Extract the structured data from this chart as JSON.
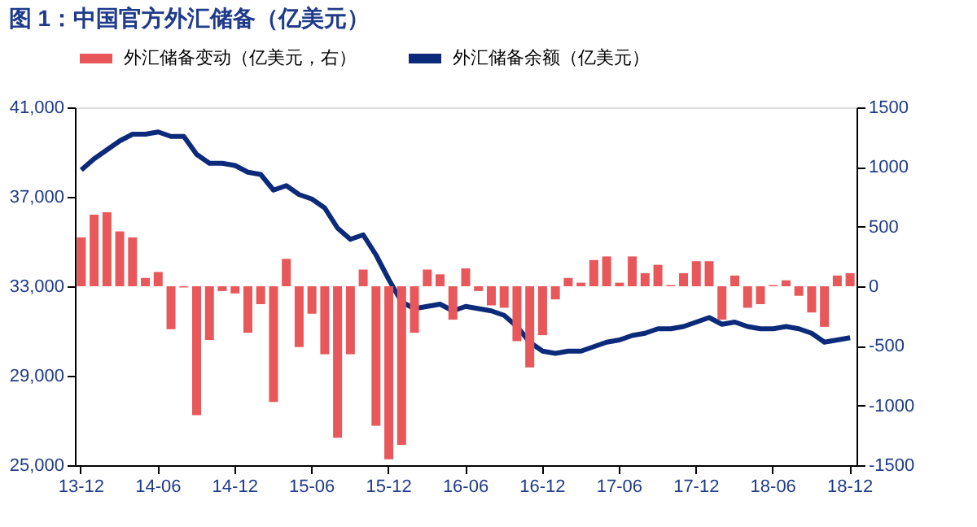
{
  "chart_data": {
    "type": "bar",
    "title": "图 1：中国官方外汇储备（亿美元）",
    "categories": [
      "13-12",
      null,
      null,
      null,
      null,
      null,
      "14-06",
      null,
      null,
      null,
      null,
      null,
      "14-12",
      null,
      null,
      null,
      null,
      null,
      "15-06",
      null,
      null,
      null,
      null,
      null,
      "15-12",
      null,
      null,
      null,
      null,
      null,
      "16-06",
      null,
      null,
      null,
      null,
      null,
      "16-12",
      null,
      null,
      null,
      null,
      null,
      "17-06",
      null,
      null,
      null,
      null,
      null,
      "17-12",
      null,
      null,
      null,
      null,
      null,
      "18-06",
      null,
      null,
      null,
      null,
      null,
      "18-12"
    ],
    "series": [
      {
        "name": "外汇储备变动（亿美元，右）",
        "axis": "y2",
        "color": "#e8585a",
        "values": [
          410,
          600,
          620,
          460,
          410,
          70,
          120,
          -360,
          -10,
          -1080,
          -450,
          -40,
          -60,
          -390,
          -150,
          -970,
          230,
          -510,
          -230,
          -570,
          -1270,
          -570,
          140,
          -1170,
          -1450,
          -1330,
          -390,
          140,
          100,
          -280,
          150,
          -40,
          -160,
          -180,
          -460,
          -680,
          -410,
          -110,
          70,
          30,
          220,
          250,
          30,
          250,
          110,
          180,
          10,
          110,
          210,
          210,
          -280,
          90,
          -180,
          -150,
          10,
          50,
          -80,
          -220,
          -340,
          90,
          110
        ]
      },
      {
        "name": "外汇储备余额（亿美元）",
        "type": "line",
        "color": "#0b2a7a",
        "values": [
          38200,
          38700,
          39100,
          39500,
          39800,
          39800,
          39900,
          39700,
          39700,
          38900,
          38500,
          38500,
          38400,
          38100,
          38000,
          37300,
          37500,
          37100,
          36900,
          36500,
          35600,
          35100,
          35300,
          34400,
          33300,
          32300,
          32000,
          32100,
          32200,
          31900,
          32100,
          32000,
          31900,
          31700,
          31200,
          30500,
          30100,
          30000,
          30100,
          30100,
          30300,
          30500,
          30600,
          30800,
          30900,
          31100,
          31100,
          31200,
          31400,
          31600,
          31300,
          31400,
          31200,
          31100,
          31100,
          31200,
          31100,
          30900,
          30500,
          30600,
          30700
        ]
      }
    ],
    "ylim": [
      25000,
      41000
    ],
    "yticks": [
      {
        "value": 25000,
        "label": "25,000"
      },
      {
        "value": 29000,
        "label": "29,000"
      },
      {
        "value": 33000,
        "label": "33,000"
      },
      {
        "value": 37000,
        "label": "37,000"
      },
      {
        "value": 41000,
        "label": "41,000"
      }
    ],
    "y2lim": [
      -1500,
      1500
    ],
    "y2ticks": [
      -1500,
      -1000,
      -500,
      0,
      500,
      1000,
      1500
    ],
    "legend": "top",
    "grid": false
  }
}
